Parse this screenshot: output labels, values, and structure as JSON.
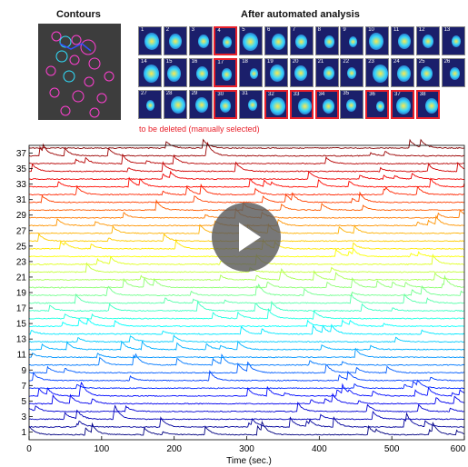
{
  "titles": {
    "contours": "Contours",
    "analysis": "After automated analysis"
  },
  "delete_note": "to be deleted (manually selected)",
  "tiles": {
    "numbers": [
      "1",
      "2",
      "3",
      "4",
      "5",
      "6",
      "7",
      "8",
      "9",
      "10",
      "11",
      "12",
      "13",
      "14",
      "15",
      "16",
      "17",
      "18",
      "19",
      "20",
      "21",
      "22",
      "23",
      "24",
      "25",
      "26",
      "27",
      "28",
      "29",
      "30",
      "31",
      "32",
      "33",
      "34",
      "35",
      "36",
      "37",
      "38"
    ],
    "deleted": [
      "4",
      "17",
      "30",
      "32",
      "33",
      "34",
      "36",
      "37",
      "38"
    ]
  },
  "chart_data": {
    "type": "line",
    "xlabel": "Time (sec.)",
    "xlim": [
      0,
      600
    ],
    "ylim": [
      0,
      38
    ],
    "x_ticks": [
      0,
      100,
      200,
      300,
      400,
      500,
      600
    ],
    "y_ticks": [
      1,
      3,
      5,
      7,
      9,
      11,
      13,
      15,
      17,
      19,
      21,
      23,
      25,
      27,
      29,
      31,
      33,
      35,
      37
    ],
    "series_count": 38,
    "colormap": "jet",
    "colors": {
      "axis": "#000000",
      "delete_border": "#e8202a",
      "play_overlay": "#5a5a5a"
    }
  },
  "video": {
    "play_icon": "play-icon"
  }
}
